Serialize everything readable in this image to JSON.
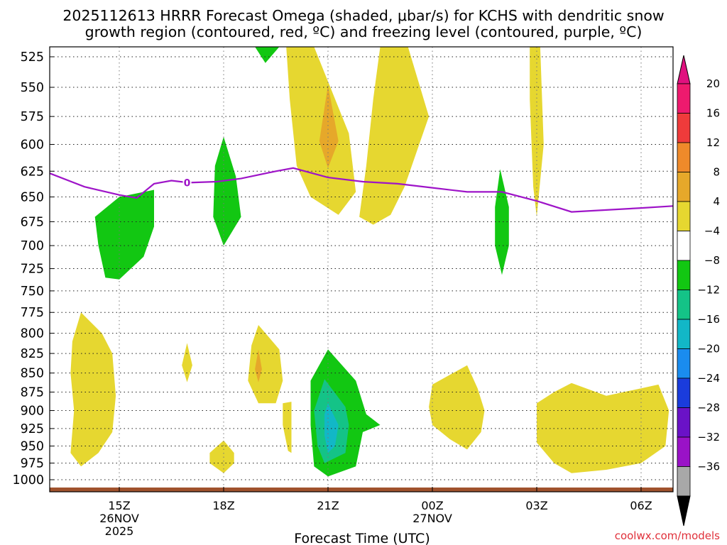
{
  "chart_data": {
    "type": "time-height",
    "title_lines": [
      "2025112613 HRRR Forecast Omega (shaded, μbar/s) for KCHS with dendritic snow",
      "growth region (contoured, red, ºC) and freezing level (contoured, purple, ºC)"
    ],
    "xlabel": "Forecast Time (UTC)",
    "credit": "coolwx.com/models",
    "y_levels": [
      "525",
      "550",
      "575",
      "600",
      "625",
      "650",
      "675",
      "700",
      "725",
      "750",
      "775",
      "800",
      "825",
      "850",
      "875",
      "900",
      "925",
      "950",
      "975",
      "1000"
    ],
    "x_ticks": [
      {
        "hour": 15,
        "lines": [
          "15Z",
          "26NOV",
          "2025"
        ]
      },
      {
        "hour": 18,
        "lines": [
          "18Z"
        ]
      },
      {
        "hour": 21,
        "lines": [
          "21Z"
        ]
      },
      {
        "hour": 24,
        "lines": [
          "00Z",
          "27NOV"
        ]
      },
      {
        "hour": 27,
        "lines": [
          "03Z"
        ]
      },
      {
        "hour": 30,
        "lines": [
          "06Z"
        ]
      }
    ],
    "colorbar": {
      "labels": [
        "20",
        "16",
        "12",
        "8",
        "4",
        "−4",
        "−8",
        "−12",
        "−16",
        "−20",
        "−24",
        "−28",
        "−32",
        "−36"
      ],
      "bands": [
        "#ee1a6e",
        "#ef3b3b",
        "#ef8a2a",
        "#e6a82a",
        "#e6d730",
        "#ffffff",
        "#12c712",
        "#14c387",
        "#12b7c7",
        "#1a8cef",
        "#1a3cdc",
        "#6a12c7",
        "#9a12c7",
        "#a8a8a8"
      ],
      "top_color": "#e0117f",
      "bottom_color": "#000000"
    },
    "freezing_level": {
      "label": "0",
      "color": "#9e14c8",
      "points": [
        [
          13.0,
          627
        ],
        [
          14.0,
          640
        ],
        [
          15.0,
          648
        ],
        [
          15.5,
          651
        ],
        [
          16.0,
          637
        ],
        [
          16.5,
          634
        ],
        [
          17.0,
          636
        ],
        [
          17.8,
          635
        ],
        [
          18.5,
          632
        ],
        [
          19.5,
          625
        ],
        [
          20.0,
          622
        ],
        [
          21.0,
          631
        ],
        [
          22.0,
          635
        ],
        [
          23.0,
          637
        ],
        [
          24.0,
          641
        ],
        [
          25.0,
          645
        ],
        [
          26.0,
          645
        ],
        [
          27.0,
          654
        ],
        [
          28.0,
          665
        ],
        [
          29.0,
          663
        ],
        [
          30.0,
          661
        ],
        [
          31.0,
          659
        ]
      ]
    },
    "omega_regions": [
      {
        "name": "green-upper-left",
        "value": -6,
        "color": "#12c712",
        "points": [
          [
            15.0,
            650
          ],
          [
            16.0,
            643
          ],
          [
            16.0,
            680
          ],
          [
            15.7,
            712
          ],
          [
            15.0,
            737
          ],
          [
            14.6,
            735
          ],
          [
            14.4,
            700
          ],
          [
            14.3,
            670
          ]
        ]
      },
      {
        "name": "green-upper-18z",
        "value": -6,
        "color": "#12c712",
        "points": [
          [
            18.0,
            593
          ],
          [
            18.35,
            630
          ],
          [
            18.5,
            670
          ],
          [
            18.0,
            700
          ],
          [
            17.7,
            670
          ],
          [
            17.75,
            620
          ]
        ]
      },
      {
        "name": "green-top-19z",
        "value": -6,
        "color": "#12c712",
        "points": [
          [
            18.9,
            515
          ],
          [
            19.6,
            515
          ],
          [
            19.2,
            530
          ]
        ]
      },
      {
        "name": "green-upper-26z",
        "value": -6,
        "color": "#12c712",
        "points": [
          [
            25.95,
            623
          ],
          [
            26.2,
            660
          ],
          [
            26.2,
            700
          ],
          [
            26.0,
            732
          ],
          [
            25.8,
            700
          ],
          [
            25.8,
            660
          ]
        ]
      },
      {
        "name": "yellow-upper-21z",
        "value": 6,
        "color": "#e6d730",
        "points": [
          [
            19.8,
            515
          ],
          [
            20.6,
            515
          ],
          [
            21.6,
            590
          ],
          [
            21.8,
            645
          ],
          [
            21.3,
            668
          ],
          [
            20.5,
            650
          ],
          [
            20.1,
            620
          ],
          [
            19.9,
            560
          ]
        ]
      },
      {
        "name": "yellow-upper-23z",
        "value": 6,
        "color": "#e6d730",
        "points": [
          [
            22.5,
            515
          ],
          [
            23.3,
            515
          ],
          [
            23.9,
            575
          ],
          [
            23.2,
            640
          ],
          [
            22.8,
            668
          ],
          [
            22.3,
            678
          ],
          [
            21.9,
            670
          ],
          [
            22.1,
            620
          ],
          [
            22.3,
            560
          ]
        ]
      },
      {
        "name": "yellow-upper-03z",
        "value": 6,
        "color": "#e6d730",
        "points": [
          [
            26.8,
            515
          ],
          [
            27.1,
            515
          ],
          [
            27.2,
            600
          ],
          [
            27.0,
            670
          ],
          [
            26.9,
            640
          ],
          [
            26.8,
            560
          ]
        ]
      },
      {
        "name": "orange-upper-21z",
        "value": 10,
        "color": "#e6a82a",
        "points": [
          [
            21.0,
            548
          ],
          [
            21.3,
            597
          ],
          [
            21.0,
            622
          ],
          [
            20.75,
            597
          ]
        ]
      },
      {
        "name": "yellow-lower-left",
        "value": 6,
        "color": "#e6d730",
        "points": [
          [
            13.9,
            775
          ],
          [
            14.5,
            800
          ],
          [
            14.8,
            825
          ],
          [
            14.9,
            880
          ],
          [
            14.8,
            930
          ],
          [
            14.4,
            960
          ],
          [
            13.9,
            980
          ],
          [
            13.6,
            960
          ],
          [
            13.7,
            900
          ],
          [
            13.6,
            850
          ],
          [
            13.65,
            810
          ]
        ]
      },
      {
        "name": "yellow-small-17z",
        "value": 6,
        "color": "#e6d730",
        "points": [
          [
            16.95,
            812
          ],
          [
            17.1,
            840
          ],
          [
            16.95,
            862
          ],
          [
            16.8,
            840
          ]
        ]
      },
      {
        "name": "yellow-mid-19z",
        "value": 6,
        "color": "#e6d730",
        "points": [
          [
            19.0,
            790
          ],
          [
            19.6,
            820
          ],
          [
            19.7,
            860
          ],
          [
            19.5,
            890
          ],
          [
            19.0,
            890
          ],
          [
            18.7,
            860
          ],
          [
            18.8,
            815
          ]
        ]
      },
      {
        "name": "orange-mid-19z",
        "value": 10,
        "color": "#e6a82a",
        "points": [
          [
            19.0,
            820
          ],
          [
            19.1,
            845
          ],
          [
            19.0,
            862
          ],
          [
            18.9,
            845
          ]
        ]
      },
      {
        "name": "yellow-small-20z",
        "value": 6,
        "color": "#e6d730",
        "points": [
          [
            19.7,
            890
          ],
          [
            19.95,
            888
          ],
          [
            19.95,
            960
          ],
          [
            19.85,
            957
          ],
          [
            19.7,
            920
          ]
        ]
      },
      {
        "name": "yellow-lower-18z",
        "value": 6,
        "color": "#e6d730",
        "points": [
          [
            18.0,
            942
          ],
          [
            18.3,
            960
          ],
          [
            18.3,
            975
          ],
          [
            18.0,
            990
          ],
          [
            17.6,
            975
          ],
          [
            17.6,
            960
          ]
        ]
      },
      {
        "name": "green-lower-21z",
        "value": -6,
        "color": "#12c712",
        "points": [
          [
            21.0,
            820
          ],
          [
            21.8,
            860
          ],
          [
            22.1,
            905
          ],
          [
            22.5,
            920
          ],
          [
            22.0,
            930
          ],
          [
            21.8,
            980
          ],
          [
            21.0,
            995
          ],
          [
            20.6,
            980
          ],
          [
            20.5,
            920
          ],
          [
            20.5,
            860
          ]
        ]
      },
      {
        "name": "teal-lower-21z",
        "value": -10,
        "color": "#14c387",
        "points": [
          [
            20.9,
            858
          ],
          [
            21.5,
            895
          ],
          [
            21.6,
            920
          ],
          [
            21.5,
            960
          ],
          [
            20.9,
            975
          ],
          [
            20.7,
            950
          ],
          [
            20.6,
            900
          ]
        ]
      },
      {
        "name": "cyan-lower-21z",
        "value": -14,
        "color": "#12b7c7",
        "points": [
          [
            21.0,
            890
          ],
          [
            21.3,
            920
          ],
          [
            21.2,
            950
          ],
          [
            21.0,
            960
          ],
          [
            20.9,
            935
          ],
          [
            20.9,
            905
          ]
        ]
      },
      {
        "name": "yellow-lower-00z",
        "value": 6,
        "color": "#e6d730",
        "points": [
          [
            24.0,
            865
          ],
          [
            25.0,
            840
          ],
          [
            25.3,
            870
          ],
          [
            25.5,
            900
          ],
          [
            25.4,
            930
          ],
          [
            25.0,
            955
          ],
          [
            24.5,
            940
          ],
          [
            24.0,
            920
          ],
          [
            23.9,
            895
          ]
        ]
      },
      {
        "name": "yellow-lower-right",
        "value": 6,
        "color": "#e6d730",
        "points": [
          [
            27.0,
            890
          ],
          [
            27.5,
            875
          ],
          [
            28.0,
            863
          ],
          [
            29.0,
            880
          ],
          [
            30.0,
            870
          ],
          [
            30.5,
            865
          ],
          [
            30.8,
            900
          ],
          [
            30.7,
            950
          ],
          [
            30.0,
            975
          ],
          [
            29.0,
            985
          ],
          [
            28.0,
            990
          ],
          [
            27.5,
            975
          ],
          [
            27.0,
            945
          ]
        ]
      }
    ]
  }
}
